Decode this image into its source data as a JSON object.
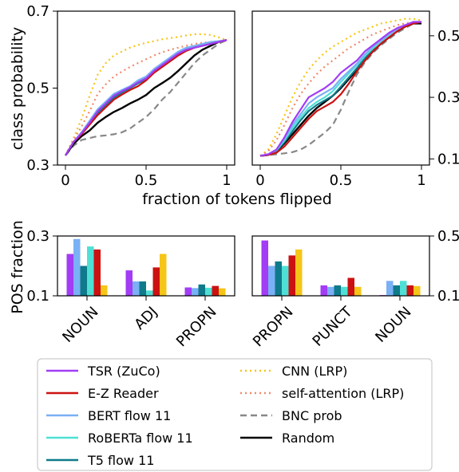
{
  "chart_data": [
    {
      "type": "line",
      "panel": "top-left",
      "xlabel": "fraction of tokens flipped",
      "ylabel": "class probability",
      "xlim": [
        0,
        1
      ],
      "ylim": [
        0.3,
        0.7
      ],
      "yticks": [
        "0.3",
        "0.5",
        "0.7"
      ],
      "xticks": [
        "0",
        "0.5",
        "1"
      ],
      "x": [
        0,
        0.05,
        0.1,
        0.15,
        0.2,
        0.25,
        0.3,
        0.35,
        0.4,
        0.45,
        0.5,
        0.55,
        0.6,
        0.65,
        0.7,
        0.75,
        0.8,
        0.85,
        0.9,
        0.95,
        1.0
      ],
      "series": [
        {
          "name": "TSR (ZuCo)",
          "values": [
            0.325,
            0.36,
            0.383,
            0.41,
            0.44,
            0.46,
            0.48,
            0.492,
            0.502,
            0.515,
            0.525,
            0.545,
            0.56,
            0.575,
            0.59,
            0.6,
            0.605,
            0.61,
            0.615,
            0.62,
            0.625
          ]
        },
        {
          "name": "E-Z Reader",
          "values": [
            0.325,
            0.36,
            0.38,
            0.405,
            0.43,
            0.45,
            0.47,
            0.483,
            0.495,
            0.505,
            0.52,
            0.54,
            0.555,
            0.57,
            0.585,
            0.597,
            0.605,
            0.61,
            0.615,
            0.62,
            0.625
          ]
        },
        {
          "name": "BERT flow 11",
          "values": [
            0.325,
            0.36,
            0.385,
            0.415,
            0.445,
            0.465,
            0.485,
            0.495,
            0.505,
            0.52,
            0.53,
            0.55,
            0.565,
            0.58,
            0.595,
            0.605,
            0.61,
            0.615,
            0.62,
            0.622,
            0.625
          ]
        },
        {
          "name": "RoBERTa flow 11",
          "values": [
            0.325,
            0.36,
            0.384,
            0.412,
            0.44,
            0.462,
            0.482,
            0.493,
            0.503,
            0.517,
            0.528,
            0.548,
            0.562,
            0.578,
            0.593,
            0.603,
            0.608,
            0.614,
            0.618,
            0.621,
            0.625
          ]
        },
        {
          "name": "T5 flow 11",
          "values": [
            0.325,
            0.36,
            0.382,
            0.408,
            0.435,
            0.455,
            0.475,
            0.488,
            0.5,
            0.512,
            0.523,
            0.543,
            0.558,
            0.573,
            0.588,
            0.6,
            0.607,
            0.612,
            0.616,
            0.62,
            0.625
          ]
        },
        {
          "name": "CNN (LRP)",
          "values": [
            0.325,
            0.37,
            0.42,
            0.48,
            0.535,
            0.565,
            0.585,
            0.595,
            0.605,
            0.612,
            0.618,
            0.622,
            0.627,
            0.63,
            0.633,
            0.637,
            0.64,
            0.64,
            0.638,
            0.632,
            0.625
          ]
        },
        {
          "name": "self-attention (LRP)",
          "values": [
            0.325,
            0.365,
            0.4,
            0.44,
            0.485,
            0.51,
            0.53,
            0.543,
            0.555,
            0.565,
            0.575,
            0.585,
            0.593,
            0.6,
            0.605,
            0.61,
            0.615,
            0.618,
            0.62,
            0.622,
            0.625
          ]
        },
        {
          "name": "BNC prob",
          "values": [
            0.325,
            0.35,
            0.365,
            0.37,
            0.375,
            0.377,
            0.38,
            0.385,
            0.395,
            0.41,
            0.425,
            0.445,
            0.47,
            0.49,
            0.515,
            0.54,
            0.565,
            0.585,
            0.6,
            0.615,
            0.625
          ]
        },
        {
          "name": "Random",
          "values": [
            0.325,
            0.355,
            0.375,
            0.39,
            0.41,
            0.425,
            0.438,
            0.448,
            0.46,
            0.47,
            0.482,
            0.5,
            0.513,
            0.527,
            0.545,
            0.565,
            0.585,
            0.6,
            0.61,
            0.62,
            0.625
          ]
        }
      ]
    },
    {
      "type": "line",
      "panel": "top-right",
      "xlim": [
        0,
        1
      ],
      "ylim": [
        0.08,
        0.58
      ],
      "yticks": [
        "0.1",
        "0.3",
        "0.5"
      ],
      "xticks": [
        "0",
        "0.5",
        "1"
      ],
      "x": [
        0,
        0.05,
        0.1,
        0.15,
        0.2,
        0.25,
        0.3,
        0.35,
        0.4,
        0.45,
        0.5,
        0.55,
        0.6,
        0.65,
        0.7,
        0.75,
        0.8,
        0.85,
        0.9,
        0.95,
        1.0
      ],
      "series": [
        {
          "name": "TSR (ZuCo)",
          "values": [
            0.11,
            0.115,
            0.13,
            0.17,
            0.22,
            0.26,
            0.3,
            0.315,
            0.33,
            0.35,
            0.38,
            0.4,
            0.42,
            0.45,
            0.47,
            0.49,
            0.51,
            0.525,
            0.535,
            0.545,
            0.545
          ]
        },
        {
          "name": "E-Z Reader",
          "values": [
            0.11,
            0.113,
            0.12,
            0.14,
            0.17,
            0.2,
            0.23,
            0.255,
            0.27,
            0.285,
            0.31,
            0.345,
            0.385,
            0.42,
            0.45,
            0.475,
            0.495,
            0.515,
            0.53,
            0.54,
            0.545
          ]
        },
        {
          "name": "BERT flow 11",
          "values": [
            0.11,
            0.115,
            0.13,
            0.165,
            0.21,
            0.245,
            0.28,
            0.3,
            0.315,
            0.33,
            0.36,
            0.385,
            0.41,
            0.44,
            0.465,
            0.485,
            0.505,
            0.52,
            0.535,
            0.545,
            0.545
          ]
        },
        {
          "name": "RoBERTa flow 11",
          "values": [
            0.11,
            0.115,
            0.128,
            0.16,
            0.2,
            0.235,
            0.265,
            0.285,
            0.3,
            0.32,
            0.35,
            0.378,
            0.405,
            0.435,
            0.46,
            0.48,
            0.5,
            0.518,
            0.532,
            0.543,
            0.545
          ]
        },
        {
          "name": "T5 flow 11",
          "values": [
            0.11,
            0.114,
            0.125,
            0.155,
            0.19,
            0.225,
            0.255,
            0.275,
            0.29,
            0.305,
            0.335,
            0.365,
            0.395,
            0.428,
            0.455,
            0.478,
            0.498,
            0.515,
            0.53,
            0.542,
            0.545
          ]
        },
        {
          "name": "CNN (LRP)",
          "values": [
            0.11,
            0.13,
            0.18,
            0.24,
            0.3,
            0.35,
            0.39,
            0.42,
            0.445,
            0.465,
            0.48,
            0.495,
            0.51,
            0.52,
            0.53,
            0.54,
            0.545,
            0.55,
            0.555,
            0.555,
            0.55
          ]
        },
        {
          "name": "self-attention (LRP)",
          "values": [
            0.11,
            0.125,
            0.16,
            0.21,
            0.265,
            0.31,
            0.345,
            0.375,
            0.4,
            0.42,
            0.44,
            0.46,
            0.475,
            0.49,
            0.505,
            0.515,
            0.525,
            0.535,
            0.54,
            0.545,
            0.545
          ]
        },
        {
          "name": "BNC prob",
          "values": [
            0.11,
            0.112,
            0.115,
            0.118,
            0.122,
            0.13,
            0.145,
            0.165,
            0.185,
            0.21,
            0.26,
            0.32,
            0.375,
            0.415,
            0.445,
            0.47,
            0.49,
            0.51,
            0.525,
            0.54,
            0.545
          ]
        },
        {
          "name": "Random",
          "values": [
            0.11,
            0.113,
            0.125,
            0.15,
            0.18,
            0.21,
            0.24,
            0.265,
            0.285,
            0.305,
            0.33,
            0.36,
            0.39,
            0.42,
            0.45,
            0.475,
            0.495,
            0.515,
            0.53,
            0.54,
            0.54
          ]
        }
      ]
    },
    {
      "type": "bar",
      "panel": "bottom-left",
      "ylabel": "POS fraction",
      "ylim": [
        0.1,
        0.3
      ],
      "yticks": [
        "0.1",
        "0.3"
      ],
      "categories": [
        "NOUN",
        "ADJ",
        "PROPN"
      ],
      "series": [
        {
          "name": "TSR (ZuCo)",
          "values": [
            0.24,
            0.185,
            0.128
          ]
        },
        {
          "name": "BERT flow 11",
          "values": [
            0.29,
            0.148,
            0.126
          ]
        },
        {
          "name": "T5 flow 11",
          "values": [
            0.2,
            0.148,
            0.138
          ]
        },
        {
          "name": "RoBERTa flow 11",
          "values": [
            0.265,
            0.118,
            0.127
          ]
        },
        {
          "name": "E-Z Reader",
          "values": [
            0.255,
            0.195,
            0.133
          ]
        },
        {
          "name": "CNN (LRP)",
          "values": [
            0.135,
            0.24,
            0.125
          ]
        }
      ]
    },
    {
      "type": "bar",
      "panel": "bottom-right",
      "ylim": [
        0.1,
        0.5
      ],
      "yticks": [
        "0.1",
        "0.5"
      ],
      "categories": [
        "PROPN",
        "PUNCT",
        "NOUN"
      ],
      "series": [
        {
          "name": "TSR (ZuCo)",
          "values": [
            0.47,
            0.17,
            0.105
          ]
        },
        {
          "name": "BERT flow 11",
          "values": [
            0.3,
            0.16,
            0.2
          ]
        },
        {
          "name": "T5 flow 11",
          "values": [
            0.33,
            0.17,
            0.17
          ]
        },
        {
          "name": "RoBERTa flow 11",
          "values": [
            0.3,
            0.16,
            0.2
          ]
        },
        {
          "name": "E-Z Reader",
          "values": [
            0.37,
            0.22,
            0.17
          ]
        },
        {
          "name": "CNN (LRP)",
          "values": [
            0.41,
            0.16,
            0.165
          ]
        }
      ]
    }
  ],
  "legend": {
    "placement": "bottom",
    "entries": [
      {
        "label": "TSR (ZuCo)",
        "color": "#a23cf5",
        "style": "solid"
      },
      {
        "label": "E-Z Reader",
        "color": "#cc1111",
        "style": "solid"
      },
      {
        "label": "BERT flow 11",
        "color": "#7ab0f5",
        "style": "solid"
      },
      {
        "label": "RoBERTa flow 11",
        "color": "#4fe0d5",
        "style": "solid"
      },
      {
        "label": "T5 flow 11",
        "color": "#0e7a8a",
        "style": "solid"
      },
      {
        "label": "CNN (LRP)",
        "color": "#f5c518",
        "style": "dotted"
      },
      {
        "label": "self-attention (LRP)",
        "color": "#f08a6a",
        "style": "dotted"
      },
      {
        "label": "BNC prob",
        "color": "#888888",
        "style": "dashed"
      },
      {
        "label": "Random",
        "color": "#000000",
        "style": "solid"
      }
    ]
  }
}
